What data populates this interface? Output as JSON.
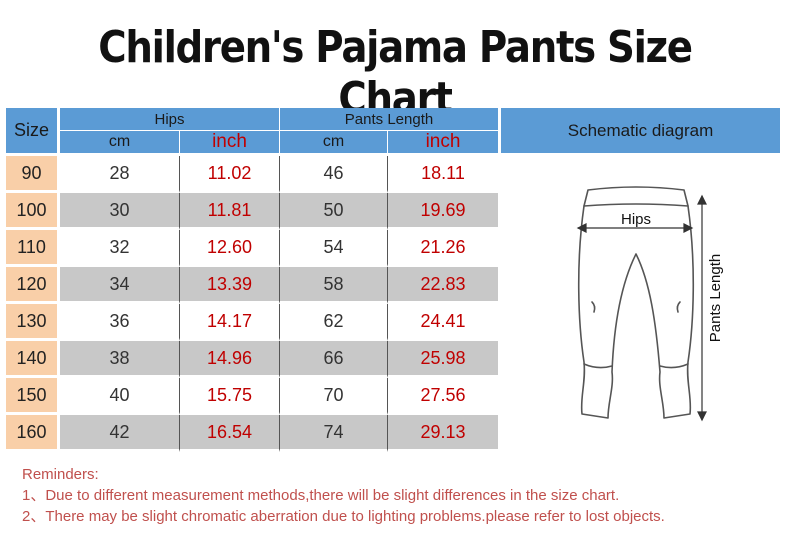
{
  "title": "Children's Pajama Pants Size Chart",
  "table": {
    "size_header": "Size",
    "hips_header": "Hips",
    "length_header": "Pants Length",
    "schematic_header": "Schematic diagram",
    "unit_cm": "cm",
    "unit_inch": "inch",
    "rows": [
      {
        "size": "90",
        "hips_cm": "28",
        "hips_inch": "11.02",
        "len_cm": "46",
        "len_inch": "18.11"
      },
      {
        "size": "100",
        "hips_cm": "30",
        "hips_inch": "11.81",
        "len_cm": "50",
        "len_inch": "19.69"
      },
      {
        "size": "110",
        "hips_cm": "32",
        "hips_inch": "12.60",
        "len_cm": "54",
        "len_inch": "21.26"
      },
      {
        "size": "120",
        "hips_cm": "34",
        "hips_inch": "13.39",
        "len_cm": "58",
        "len_inch": "22.83"
      },
      {
        "size": "130",
        "hips_cm": "36",
        "hips_inch": "14.17",
        "len_cm": "62",
        "len_inch": "24.41"
      },
      {
        "size": "140",
        "hips_cm": "38",
        "hips_inch": "14.96",
        "len_cm": "66",
        "len_inch": "25.98"
      },
      {
        "size": "150",
        "hips_cm": "40",
        "hips_inch": "15.75",
        "len_cm": "70",
        "len_inch": "27.56"
      },
      {
        "size": "160",
        "hips_cm": "42",
        "hips_inch": "16.54",
        "len_cm": "74",
        "len_inch": "29.13"
      }
    ]
  },
  "diagram": {
    "hips_label": "Hips",
    "length_label": "Pants Length"
  },
  "reminders": {
    "heading": "Reminders:",
    "items": [
      "1、Due to different measurement methods,there will be slight differences in the size chart.",
      "2、There may be slight chromatic aberration due to lighting problems.please refer to lost objects."
    ]
  },
  "colors": {
    "header_blue": "#5b9bd5",
    "size_peach": "#f9cfa8",
    "row_gray": "#c8c8c8",
    "inch_red": "#c00000",
    "reminder_red": "#c0504d"
  }
}
